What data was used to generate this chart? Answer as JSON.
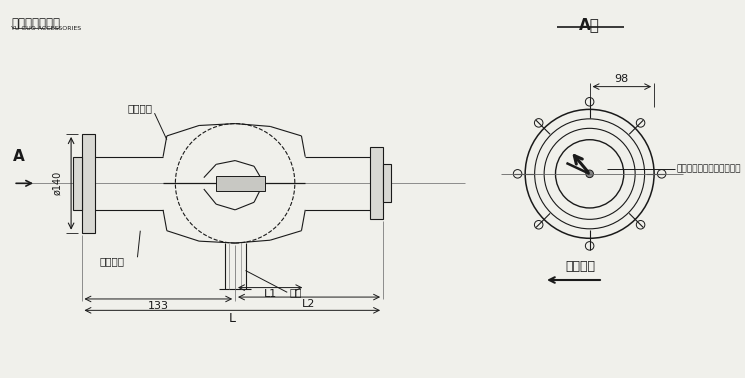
{
  "bg_color": "#f0f0eb",
  "line_color": "#1a1a1a",
  "title_cn": "玉国变压器配件",
  "title_en": "YU GUO ACCESSORIES",
  "label_flange": "安装法兰",
  "label_pipe": "联管",
  "label_seal": "密封垫圈",
  "label_dim_133": "133",
  "label_dim_L1": "L1",
  "label_dim_L2": "L2",
  "label_dim_L": "L",
  "label_dim_phi140": "ø140",
  "label_A": "A",
  "label_A_dir": "A向",
  "label_dim_98": "98",
  "label_indicator": "动板起始位置（无流量时）",
  "label_oil_dir": "油流方向"
}
